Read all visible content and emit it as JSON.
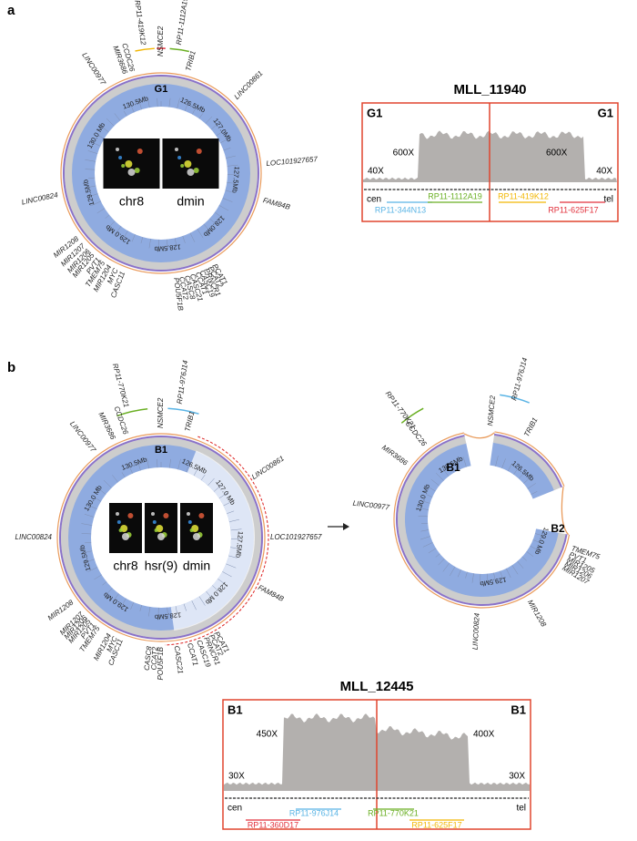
{
  "panels": [
    {
      "label": "a",
      "circos": {
        "center_label": "G1",
        "genes": [
          "RP11-419K12",
          "NSMCE2",
          "RP11-1112A19",
          "TRIB1",
          "LINC00861",
          "LOC101927657",
          "FAM84B",
          "PCAT1",
          "PCAT2",
          "PRNCR1",
          "CASC19",
          "CCAT1",
          "CASC21",
          "CASC8",
          "CCAT2",
          "POU5F1B",
          "CASC11",
          "MYC",
          "MIR1204",
          "TMEM75",
          "PVT1",
          "MIR1205",
          "MIR1206",
          "MIR1207",
          "MIR1208",
          "LINC00824",
          "LINC00977",
          "MIR3686",
          "CCDC26"
        ],
        "coords": [
          "126.5Mb",
          "127.0Mb",
          "127.5Mb",
          "128.0Mb",
          "128.5Mb",
          "129.0 Mb",
          "129.5Mb",
          "130.0 Mb",
          "130.5Mb"
        ],
        "insets": [
          "chr8",
          "dmin"
        ]
      },
      "coverage": {
        "title": "MLL_11940",
        "left_label": "G1",
        "right_label": "G1",
        "peak_labels": [
          "600X",
          "600X"
        ],
        "base_labels": [
          "40X",
          "40X"
        ],
        "cen": "cen",
        "tel": "tel",
        "probes": [
          {
            "label": "RP11-344N13",
            "color": "#5ab4e5"
          },
          {
            "label": "RP11-1112A19",
            "color": "#6aaf23"
          },
          {
            "label": "RP11-419K12",
            "color": "#f2b705"
          },
          {
            "label": "RP11-625F17",
            "color": "#e2313c"
          }
        ]
      }
    },
    {
      "label": "b",
      "circos": {
        "center_label": "B1",
        "genes": [
          "RP11-770K21",
          "RP11-976J14",
          "MIR3686",
          "CCDC26",
          "NSMCE2",
          "TRIB1",
          "LINC00977",
          "LINC00861",
          "LOC101927657",
          "FAM84B",
          "LINC00824",
          "MIR1208",
          "MIR1207",
          "MIR1206",
          "MIR1205",
          "PVT1",
          "TMEM75",
          "MIR1204",
          "MYC",
          "CASC11",
          "CASC8",
          "CCAT2",
          "POU5F1B",
          "CASC21",
          "CCAT1",
          "CASC19",
          "PRNCR1",
          "PCAT2",
          "PCAT1"
        ],
        "coords": [
          "126.5Mb",
          "127.0 Mb",
          "127.5Mb",
          "128.0 Mb",
          "128.5Mb",
          "129.0 Mb",
          "129.5Mb",
          "130.0 Mb",
          "130.5Mb"
        ],
        "insets": [
          "chr8",
          "hsr(9)",
          "dmin"
        ]
      },
      "circos_after": {
        "junction_labels": [
          "B1",
          "B2"
        ],
        "genes": [
          "RP11-770K21",
          "RP11-976J14",
          "CCDC26",
          "MIR3686",
          "NSMCE2",
          "TRIB1",
          "LINC00977",
          "TMEM75",
          "PVT1",
          "MIR1205",
          "MIR1206",
          "MIR1207",
          "MIR1208",
          "LINC00824"
        ],
        "coords": [
          "130.5Mb",
          "126.5Mb",
          "130.0 Mb",
          "129.0 Mb",
          "129.5Mb"
        ]
      },
      "coverage": {
        "title": "MLL_12445",
        "left_label": "B1",
        "right_label": "B1",
        "peak_labels": [
          "450X",
          "400X"
        ],
        "base_labels": [
          "30X",
          "30X"
        ],
        "cen": "cen",
        "tel": "tel",
        "probes": [
          {
            "label": "RP11-976J14",
            "color": "#5ab4e5"
          },
          {
            "label": "RP11-360D17",
            "color": "#e2313c"
          },
          {
            "label": "RP11-770K21",
            "color": "#6aaf23"
          },
          {
            "label": "RP11-625F17",
            "color": "#f2b705"
          }
        ]
      }
    }
  ]
}
